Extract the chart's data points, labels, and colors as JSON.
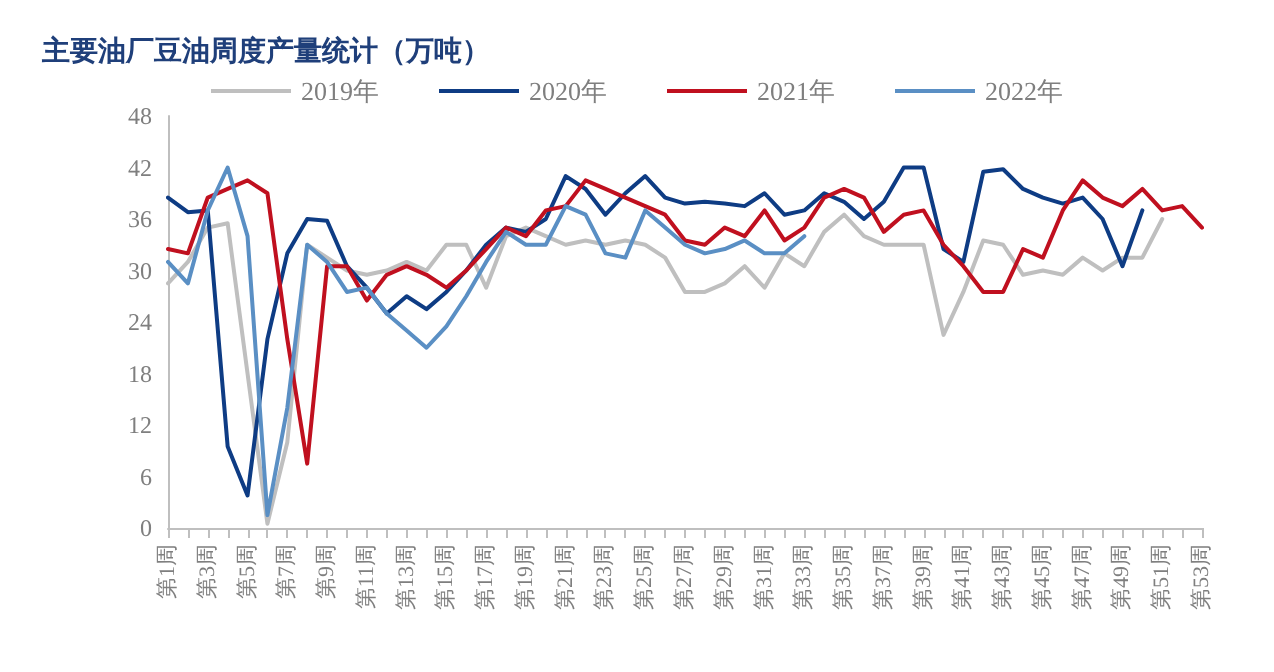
{
  "chart_data": {
    "type": "line",
    "title": "主要油厂豆油周度产量统计（万吨）",
    "categories": [
      "第1周",
      null,
      "第3周",
      null,
      "第5周",
      null,
      "第7周",
      null,
      "第9周",
      null,
      "第11周",
      null,
      "第13周",
      null,
      "第15周",
      null,
      "第17周",
      null,
      "第19周",
      null,
      "第21周",
      null,
      "第23周",
      null,
      "第25周",
      null,
      "第27周",
      null,
      "第29周",
      null,
      "第31周",
      null,
      "第33周",
      null,
      "第35周",
      null,
      "第37周",
      null,
      "第39周",
      null,
      "第41周",
      null,
      "第43周",
      null,
      "第45周",
      null,
      "第47周",
      null,
      "第49周",
      null,
      "第51周",
      null,
      "第53周"
    ],
    "series": [
      {
        "name": "2019年",
        "color": "#bfbfbf",
        "values": [
          28.5,
          31,
          35,
          35.5,
          18,
          0.5,
          10,
          33,
          31.5,
          30,
          29.5,
          30,
          31,
          30,
          33,
          33,
          28,
          34,
          35,
          34,
          33,
          33.5,
          33,
          33.5,
          33,
          31.5,
          27.5,
          27.5,
          28.5,
          30.5,
          28,
          32,
          30.5,
          34.5,
          36.5,
          34,
          33,
          33,
          33,
          22.5,
          27.5,
          33.5,
          33,
          29.5,
          30,
          29.5,
          31.5,
          30,
          31.5,
          31.5,
          36,
          null,
          null
        ]
      },
      {
        "name": "2020年",
        "color": "#0e3c84",
        "values": [
          38.5,
          36.8,
          37,
          9.5,
          3.8,
          22,
          32,
          36,
          35.8,
          30.5,
          28,
          25,
          27,
          25.5,
          27.5,
          30,
          33,
          35,
          34.5,
          36,
          41,
          39.5,
          36.5,
          39,
          41,
          38.5,
          37.8,
          38,
          37.8,
          37.5,
          39,
          36.5,
          37,
          39,
          38,
          36,
          38,
          42,
          42,
          32.5,
          31,
          41.5,
          41.8,
          39.5,
          38.5,
          37.8,
          38.5,
          36,
          30.5,
          37,
          null,
          null,
          null
        ]
      },
      {
        "name": "2021年",
        "color": "#c0101f",
        "values": [
          32.5,
          32,
          38.5,
          39.5,
          40.5,
          39,
          22,
          7.5,
          30.5,
          30.5,
          26.5,
          29.5,
          30.5,
          29.5,
          28,
          30,
          32.5,
          35,
          34,
          37,
          37.5,
          40.5,
          39.5,
          38.5,
          37.5,
          36.5,
          33.5,
          33,
          35,
          34,
          37,
          33.5,
          35,
          38.5,
          39.5,
          38.5,
          34.5,
          36.5,
          37,
          33,
          30.5,
          27.5,
          27.5,
          32.5,
          31.5,
          37,
          40.5,
          38.5,
          37.5,
          39.5,
          37,
          37.5,
          35
        ]
      },
      {
        "name": "2022年",
        "color": "#5a8fc4",
        "values": [
          31,
          28.5,
          37,
          42,
          34,
          1.5,
          14,
          33,
          31,
          27.5,
          28,
          25,
          23,
          21,
          23.5,
          27,
          31,
          34.5,
          33,
          33,
          37.5,
          36.5,
          32,
          31.5,
          37,
          35,
          33,
          32,
          32.5,
          33.5,
          32,
          32,
          34,
          null,
          null,
          null,
          null,
          null,
          null,
          null,
          null,
          null,
          null,
          null,
          null,
          null,
          null,
          null,
          null,
          null,
          null,
          null,
          null
        ]
      }
    ],
    "ylim": [
      0,
      48
    ],
    "yticks": [
      0,
      6,
      12,
      18,
      24,
      30,
      36,
      42,
      48
    ],
    "grid": false,
    "legend": "top",
    "marker": "none",
    "line_style": "solid"
  }
}
